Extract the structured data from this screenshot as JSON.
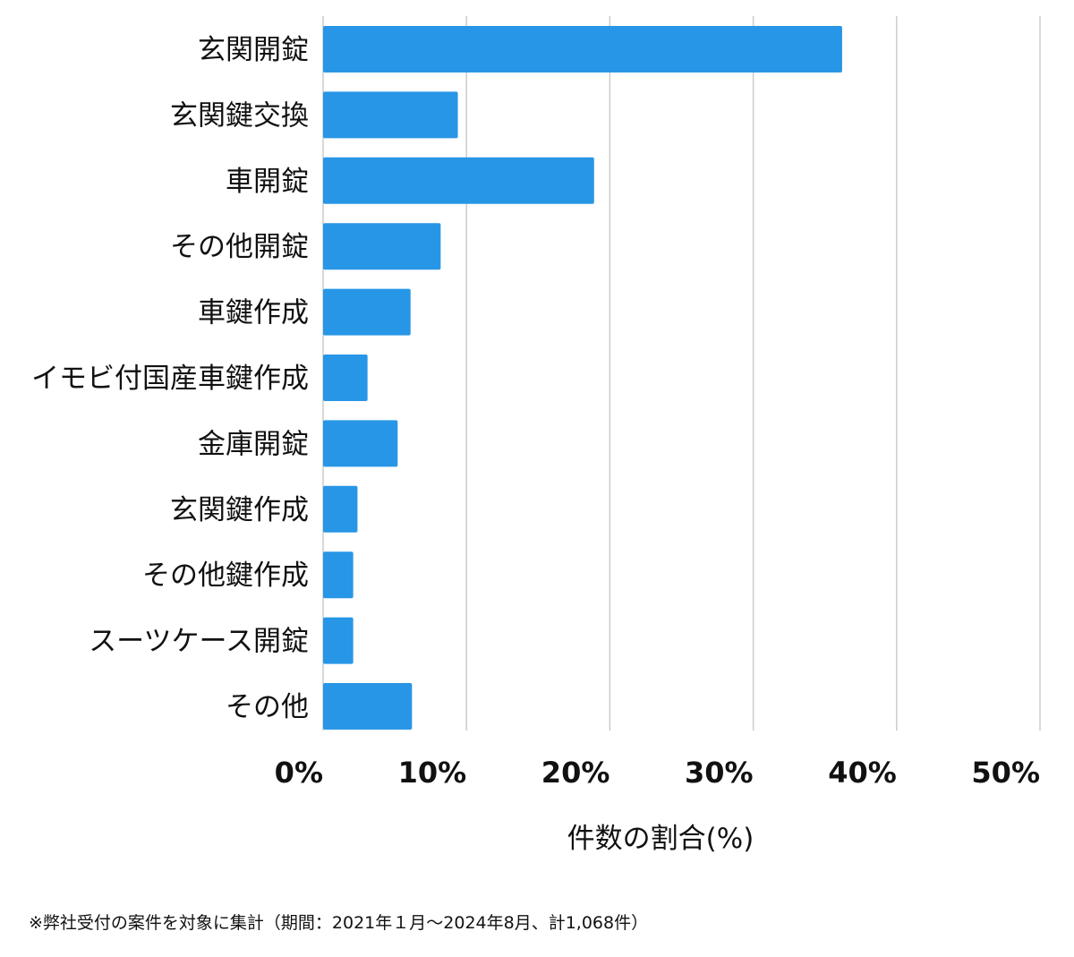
{
  "chart_data": {
    "type": "bar",
    "orientation": "horizontal",
    "categories": [
      "玄関開錠",
      "玄関鍵交換",
      "車開錠",
      "その他開錠",
      "車鍵作成",
      "イモビ付国産車鍵作成",
      "金庫開錠",
      "玄関鍵作成",
      "その他鍵作成",
      "スーツケース開錠",
      "その他"
    ],
    "values": [
      36.2,
      9.4,
      18.9,
      8.2,
      6.1,
      3.1,
      5.2,
      2.4,
      2.1,
      2.1,
      6.2
    ],
    "xlim": [
      0,
      50
    ],
    "x_ticks": [
      0,
      10,
      20,
      30,
      40,
      50
    ],
    "x_tick_labels": [
      "0%",
      "10%",
      "20%",
      "30%",
      "40%",
      "50%"
    ],
    "xlabel": "件数の割合(%)",
    "ylabel": "",
    "title": "",
    "grid": true,
    "bar_color": "#2896e6",
    "grid_color": "#cccccc"
  },
  "footnote": "※弊社受付の案件を対象に集計（期間：2021年１月〜2024年8月、計1,068件）"
}
